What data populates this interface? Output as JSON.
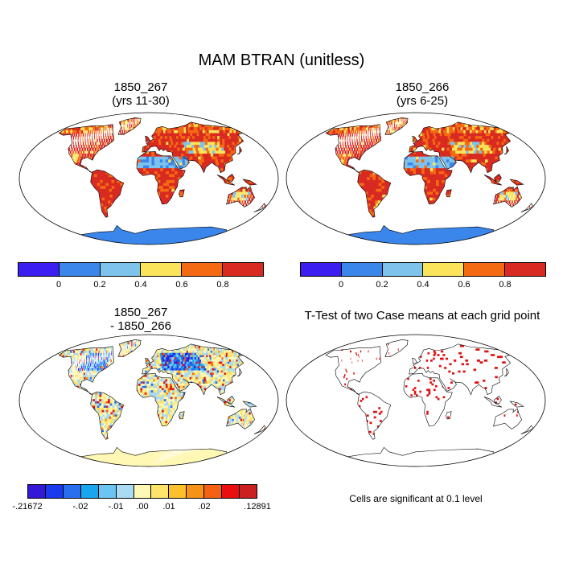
{
  "figure": {
    "title": "MAM BTRAN (unitless)"
  },
  "panels": [
    {
      "id": "case1",
      "title_line1": "1850_267",
      "title_line2": "(yrs 11-30)"
    },
    {
      "id": "case2",
      "title_line1": "1850_266",
      "title_line2": "(yrs 6-25)"
    },
    {
      "id": "diff",
      "title_line1": "1850_267",
      "title_line2": "- 1850_266"
    },
    {
      "id": "ttest",
      "title_line1": "T-Test of two Case means at each grid point",
      "title_line2": ""
    }
  ],
  "colorbars": {
    "main": {
      "colors": [
        "#3d1ef0",
        "#3b86ea",
        "#7ec3ec",
        "#fbe45a",
        "#f46a12",
        "#d92a22"
      ],
      "labels": [
        "0",
        "0.2",
        "0.4",
        "0.6",
        "0.8"
      ]
    },
    "diff": {
      "colors": [
        "#3318d8",
        "#1a3aef",
        "#2a6ef0",
        "#1aa6ef",
        "#6cc4f0",
        "#a9dbf2",
        "#fff7b4",
        "#ffe36a",
        "#fbc02c",
        "#f79218",
        "#f46014",
        "#ea0e0e",
        "#cc2020"
      ],
      "labels": [
        "-.21672",
        "-.02",
        "-.01",
        ".00",
        ".01",
        ".02",
        ".12891"
      ]
    }
  },
  "significance_note": "Cells are significant at 0.1 level",
  "legend_colors": {
    "significant": "#e01010",
    "ocean_fill": "#3b86ea"
  }
}
